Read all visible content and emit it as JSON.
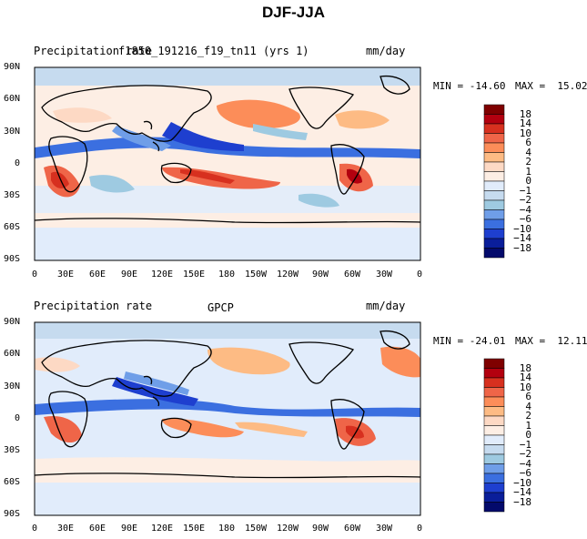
{
  "title": "DJF-JJA",
  "panels": [
    {
      "left_label": "Precipitation rate",
      "center_label": "f1850_191216_f19_tn11 (yrs 1)",
      "units": "mm/day",
      "min_label": "MIN = -14.60",
      "max_label": "MAX =  15.02",
      "colorbar_labels": [
        "18",
        "14",
        "10",
        "6",
        "4",
        "2",
        "1",
        "0",
        "−1",
        "−2",
        "−4",
        "−6",
        "−10",
        "−14",
        "−18"
      ]
    },
    {
      "left_label": "Precipitation rate",
      "center_label": "GPCP",
      "units": "mm/day",
      "min_label": "MIN = -24.01",
      "max_label": "MAX =  12.11",
      "colorbar_labels": [
        "18",
        "14",
        "10",
        "6",
        "4",
        "2",
        "1",
        "0",
        "−1",
        "−2",
        "−4",
        "−6",
        "−10",
        "−14",
        "−18"
      ]
    }
  ],
  "lat_ticks": [
    "90N",
    "60N",
    "30N",
    "0",
    "30S",
    "60S",
    "90S"
  ],
  "lon_ticks": [
    "0",
    "30E",
    "60E",
    "90E",
    "120E",
    "150E",
    "180",
    "150W",
    "120W",
    "90W",
    "60W",
    "30W",
    "0"
  ],
  "colors": {
    "bins": [
      "#7f0000",
      "#b3000f",
      "#d7301f",
      "#ef6548",
      "#fc8d59",
      "#fdbb84",
      "#fdd9c4",
      "#fdeee4",
      "#e1ecfb",
      "#c6dbef",
      "#9ecae1",
      "#6f9ee8",
      "#3b6fe0",
      "#1e3fcf",
      "#0a1e9a",
      "#030a6b"
    ]
  }
}
